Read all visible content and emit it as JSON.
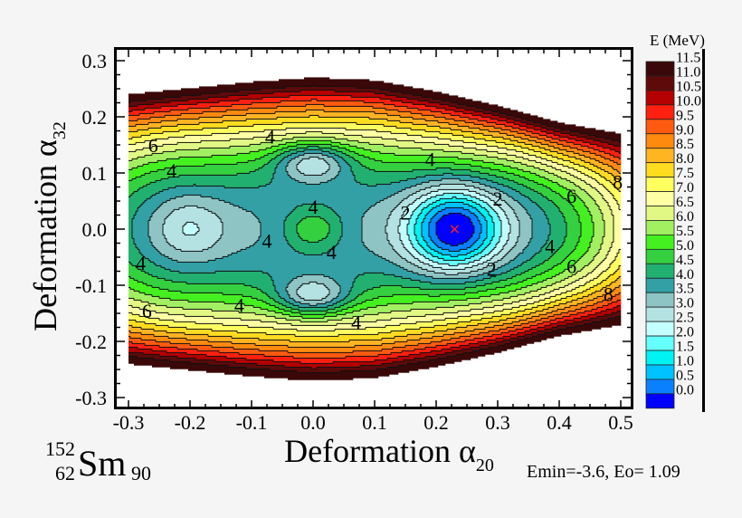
{
  "chart_data": {
    "type": "heatmap",
    "subtype": "filled-contour",
    "xlabel": "Deformation α",
    "xlabel_sub": "20",
    "ylabel": "Deformation α",
    "ylabel_sub": "32",
    "xlim": [
      -0.3,
      0.5
    ],
    "ylim": [
      -0.3,
      0.3
    ],
    "xticks": [
      "-0.3",
      "-0.2",
      "-0.1",
      "0.0",
      "0.1",
      "0.2",
      "0.3",
      "0.4",
      "0.5"
    ],
    "yticks": [
      "0.3",
      "0.2",
      "0.1",
      "0.0",
      "-0.1",
      "-0.2",
      "-0.3"
    ],
    "colorbar": {
      "title": "E (MeV)",
      "labels": [
        "11.5",
        "11.0",
        "10.5",
        "10.0",
        "9.5",
        "9.0",
        "8.5",
        "8.0",
        "7.5",
        "7.0",
        "6.5",
        "6.0",
        "5.5",
        "5.0",
        "4.5",
        "4.0",
        "3.5",
        "3.0",
        "2.5",
        "2.0",
        "1.5",
        "1.0",
        "0.5",
        "0.0"
      ],
      "colors": [
        "#3a0808",
        "#5e0a0a",
        "#b40000",
        "#ff2010",
        "#ff5a10",
        "#ff8a10",
        "#ffb422",
        "#ffdc20",
        "#ffff60",
        "#ffffa4",
        "#e2f884",
        "#a2f062",
        "#44f020",
        "#34d040",
        "#22b070",
        "#32a0a4",
        "#8ec4c4",
        "#b4e2e2",
        "#c4ffff",
        "#66ffff",
        "#00f2f2",
        "#00c2ff",
        "#0a80ff",
        "#0000ff"
      ]
    },
    "minima": [
      {
        "a20": 0.23,
        "a32": 0.0,
        "E": 0.0
      },
      {
        "a20": -0.2,
        "a32": 0.0,
        "E": 2.7
      },
      {
        "a20": 0.0,
        "a32": 0.12,
        "E": 2.8
      },
      {
        "a20": 0.0,
        "a32": -0.12,
        "E": 2.8
      },
      {
        "a20": 0.0,
        "a32": 0.0,
        "E": 4.8
      }
    ],
    "ground_state_marker": {
      "a20": 0.23,
      "a32": 0.0,
      "color": "#ff2020"
    },
    "contour_labels": [
      {
        "text": "6",
        "a20": -0.26,
        "a32": 0.15
      },
      {
        "text": "4",
        "a20": -0.23,
        "a32": 0.105
      },
      {
        "text": "4",
        "a20": -0.07,
        "a32": 0.165
      },
      {
        "text": "4",
        "a20": 0.19,
        "a32": 0.125
      },
      {
        "text": "4",
        "a20": 0.0,
        "a32": 0.04
      },
      {
        "text": "4",
        "a20": -0.075,
        "a32": -0.02
      },
      {
        "text": "4",
        "a20": 0.03,
        "a32": -0.04
      },
      {
        "text": "2",
        "a20": 0.15,
        "a32": 0.03
      },
      {
        "text": "2",
        "a20": 0.3,
        "a32": 0.055
      },
      {
        "text": "2",
        "a20": 0.29,
        "a32": -0.07
      },
      {
        "text": "4",
        "a20": 0.385,
        "a32": -0.03
      },
      {
        "text": "6",
        "a20": 0.42,
        "a32": 0.06
      },
      {
        "text": "6",
        "a20": 0.42,
        "a32": -0.065
      },
      {
        "text": "8",
        "a20": 0.48,
        "a32": -0.115
      },
      {
        "text": "8",
        "a20": 0.495,
        "a32": 0.085
      },
      {
        "text": "4",
        "a20": -0.28,
        "a32": -0.06
      },
      {
        "text": "4",
        "a20": -0.12,
        "a32": -0.135
      },
      {
        "text": "4",
        "a20": 0.07,
        "a32": -0.165
      },
      {
        "text": "6",
        "a20": -0.27,
        "a32": -0.145
      }
    ]
  },
  "nucleus": {
    "mass": "152",
    "charge": "62",
    "symbol": "Sm",
    "neutrons": "90"
  },
  "footer_note": "Emin=-3.6, Eo= 1.09"
}
